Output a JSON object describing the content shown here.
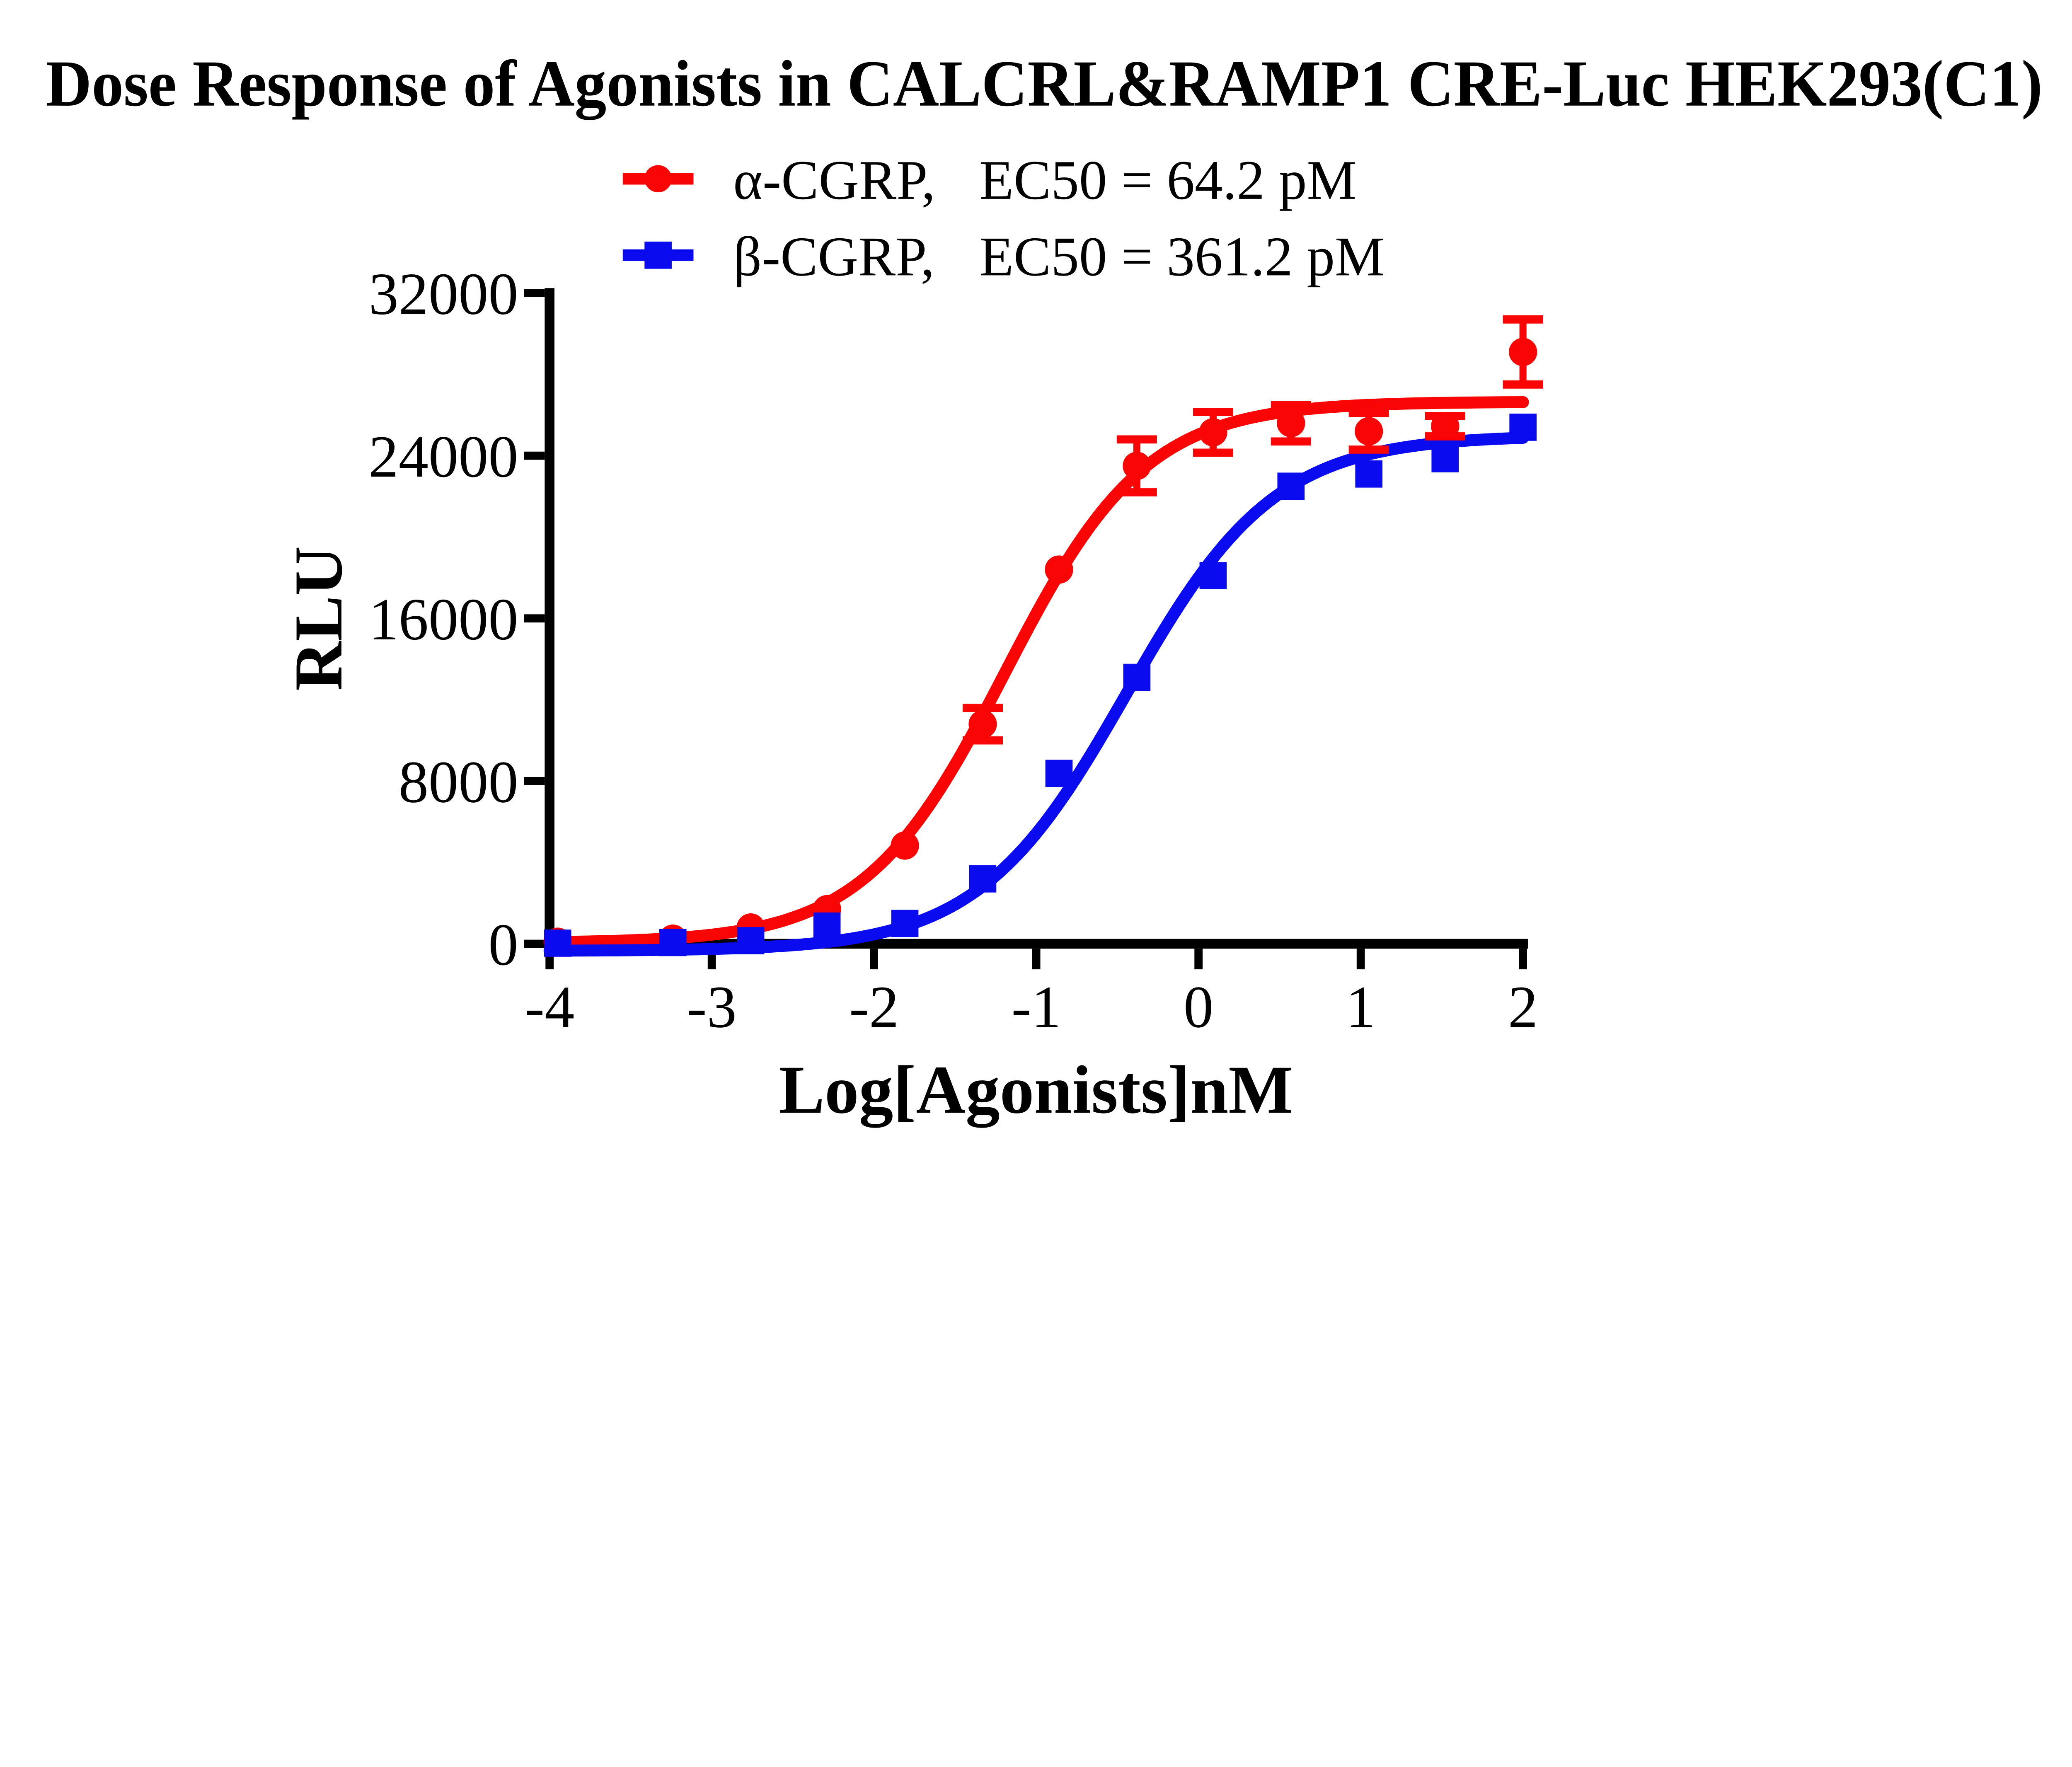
{
  "title": "Dose Response of Agonists in CALCRL&RAMP1 CRE-Luc HEK293(C1)",
  "colors": {
    "alpha_red": "#FA0505",
    "beta_blue": "#0B0BF0",
    "axis": "#000000",
    "background": "#FFFFFF"
  },
  "legend": {
    "items": [
      {
        "name": "α-CGRP,",
        "ec50": "EC50 = 64.2 pM",
        "marker": "circle",
        "color_key": "alpha_red"
      },
      {
        "name": "β-CGRP,",
        "ec50": "EC50 = 361.2 pM",
        "marker": "square",
        "color_key": "beta_blue"
      }
    ]
  },
  "chart_data": {
    "type": "scatter",
    "subtype": "dose-response-sigmoid-fit",
    "title": "Dose Response of Agonists in CALCRL&RAMP1 CRE-Luc HEK293(C1)",
    "xlabel": "Log[Agonists]nM",
    "ylabel": "RLU",
    "xlim": [
      -4,
      2
    ],
    "ylim": [
      0,
      32000
    ],
    "xticks": [
      -4,
      -3,
      -2,
      -1,
      0,
      1,
      2
    ],
    "yticks": [
      0,
      8000,
      16000,
      24000,
      32000
    ],
    "grid": false,
    "legend_position": "top-center",
    "x": [
      -3.95,
      -3.24,
      -2.76,
      -2.29,
      -1.81,
      -1.33,
      -0.86,
      -0.38,
      0.09,
      0.57,
      1.05,
      1.52,
      2.0
    ],
    "series": [
      {
        "name": "α-CGRP",
        "ec50_label": "EC50 = 64.2 pM",
        "ec50_pM": 64.2,
        "marker": "circle",
        "color_key": "alpha_red",
        "y": [
          100,
          250,
          800,
          1700,
          4830,
          10800,
          18400,
          23500,
          25150,
          25600,
          25200,
          25450,
          29100
        ],
        "yerr": [
          0,
          0,
          0,
          0,
          0,
          800,
          0,
          1300,
          1000,
          900,
          900,
          500,
          1600
        ],
        "fit": {
          "bottom": 40,
          "top": 26650,
          "logec50": -1.192,
          "hill": 1.0
        }
      },
      {
        "name": "β-CGRP",
        "ec50_label": "EC50 = 361.2 pM",
        "ec50_pM": 361.2,
        "marker": "square",
        "color_key": "beta_blue",
        "y": [
          30,
          60,
          150,
          870,
          1000,
          3190,
          8380,
          13100,
          18100,
          22500,
          23100,
          23850,
          25400
        ],
        "yerr": [
          0,
          0,
          0,
          0,
          0,
          0,
          0,
          0,
          0,
          0,
          0,
          0,
          0
        ],
        "fit": {
          "bottom": -350,
          "top": 25000,
          "logec50": -0.442,
          "hill": 0.95
        }
      }
    ]
  }
}
